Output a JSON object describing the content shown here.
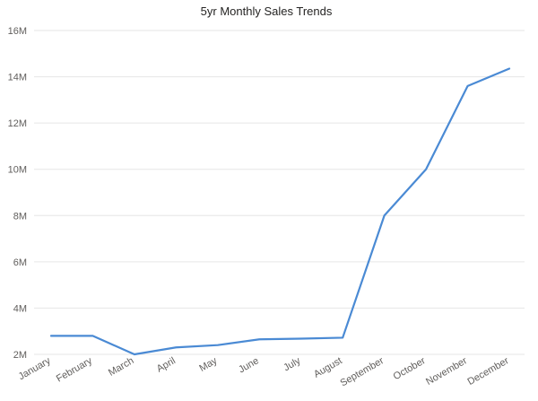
{
  "chart_data": {
    "type": "line",
    "title": "5yr Monthly Sales Trends",
    "xlabel": "",
    "ylabel": "",
    "categories": [
      "January",
      "February",
      "March",
      "April",
      "May",
      "June",
      "July",
      "August",
      "September",
      "October",
      "November",
      "December"
    ],
    "series": [
      {
        "values": [
          2.8,
          2.8,
          2.0,
          2.3,
          2.4,
          2.65,
          2.68,
          2.72,
          8.0,
          10.0,
          13.6,
          14.35
        ],
        "color": "#4a8ad4"
      }
    ],
    "yticks": [
      {
        "value": 2,
        "label": "2M"
      },
      {
        "value": 4,
        "label": "4M"
      },
      {
        "value": 6,
        "label": "6M"
      },
      {
        "value": 8,
        "label": "8M"
      },
      {
        "value": 10,
        "label": "10M"
      },
      {
        "value": 12,
        "label": "12M"
      },
      {
        "value": 14,
        "label": "14M"
      },
      {
        "value": 16,
        "label": "16M"
      }
    ],
    "ylim": [
      2,
      16
    ],
    "grid": true,
    "legend": "none"
  }
}
